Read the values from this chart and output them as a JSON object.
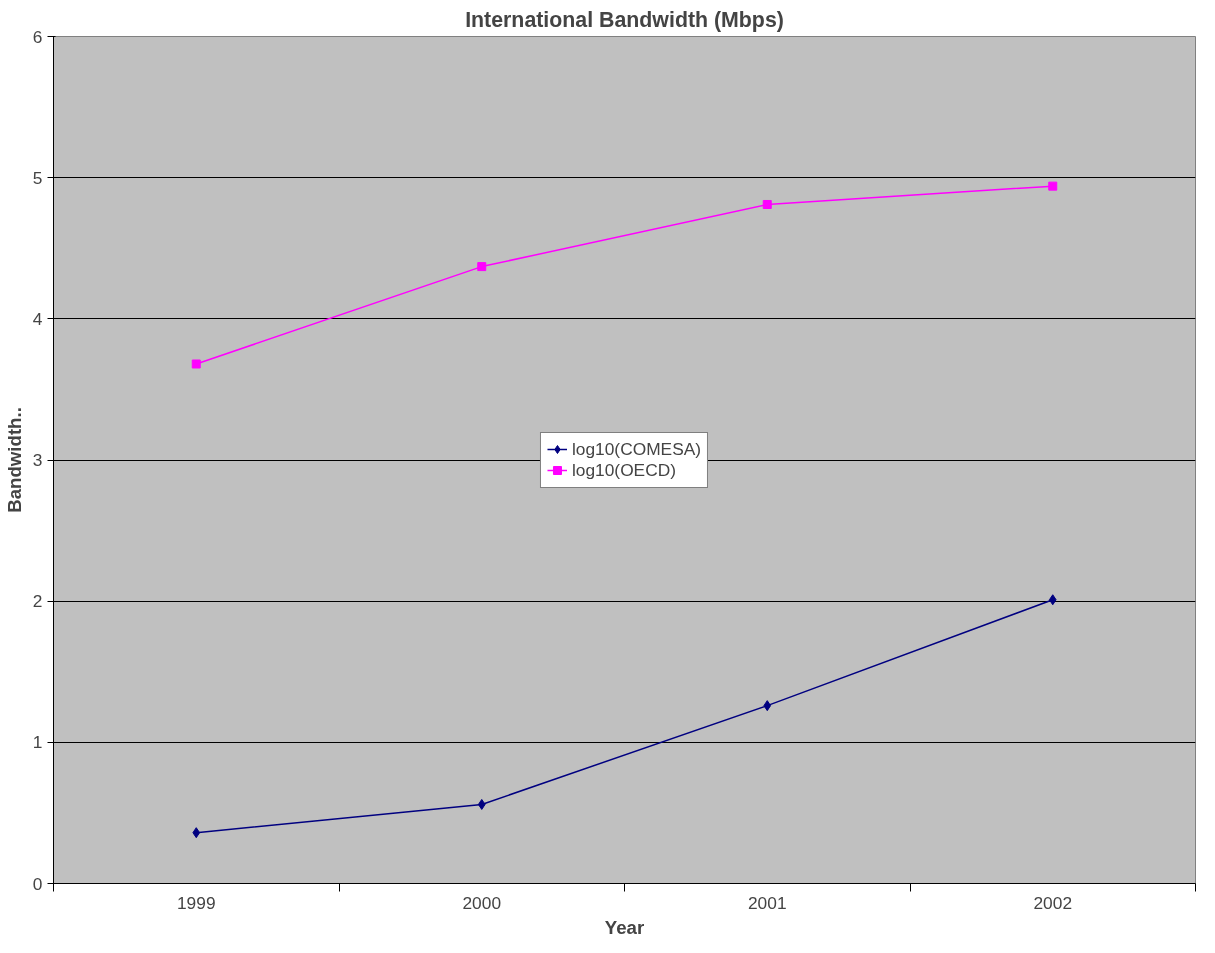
{
  "chart_data": {
    "type": "line",
    "title": "International Bandwidth (Mbps)",
    "xlabel": "Year",
    "ylabel": "Bandwidth..",
    "categories": [
      "1999",
      "2000",
      "2001",
      "2002"
    ],
    "series": [
      {
        "name": "log10(COMESA)",
        "color": "#000080",
        "marker": "diamond",
        "values": [
          0.36,
          0.56,
          1.26,
          2.01
        ]
      },
      {
        "name": "log10(OECD)",
        "color": "#ff00ff",
        "marker": "square",
        "values": [
          3.68,
          4.37,
          4.81,
          4.94
        ]
      }
    ],
    "ylim": [
      0,
      6
    ],
    "yticks": [
      0,
      1,
      2,
      3,
      4,
      5,
      6
    ],
    "grid": "y",
    "legend": "center",
    "line_style": "solid"
  }
}
